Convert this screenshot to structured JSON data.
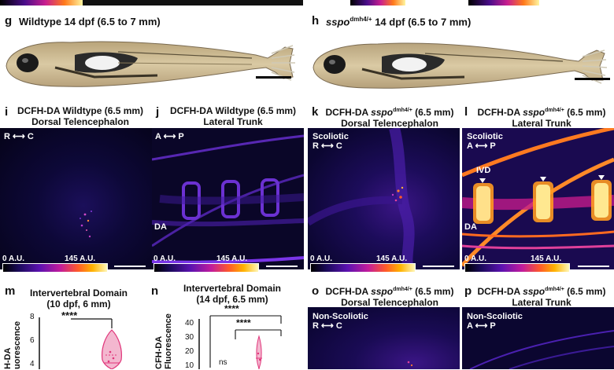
{
  "top_strip": {
    "present": true
  },
  "panels": {
    "g": {
      "letter": "g",
      "title": "Wildtype 14 dpf (6.5 to 7 mm)"
    },
    "h": {
      "letter": "h",
      "title_italic": "sspo",
      "title_sup": "dmh4/+",
      "title_rest": " 14 dpf (6.5 to 7 mm)"
    },
    "i": {
      "letter": "i",
      "line1": "DCFH-DA Wildtype (6.5 mm)",
      "line2": "Dorsal Telencephalon",
      "orientation": "R ⟷ C",
      "cbar_min": "0 A.U.",
      "cbar_max": "145 A.U."
    },
    "j": {
      "letter": "j",
      "line1": "DCFH-DA Wildtype (6.5 mm)",
      "line2": "Lateral Trunk",
      "orientation": "A ⟷ P",
      "label_da": "DA",
      "cbar_min": "0 A.U.",
      "cbar_max": "145 A.U."
    },
    "k": {
      "letter": "k",
      "line1_pre": "DCFH-DA ",
      "line1_italic": "sspo",
      "line1_sup": "dmh4/+",
      "line1_post": " (6.5 mm)",
      "line2": "Dorsal Telencephalon",
      "tag": "Scoliotic",
      "orientation": "R ⟷ C",
      "cbar_min": "0 A.U.",
      "cbar_max": "145 A.U."
    },
    "l": {
      "letter": "l",
      "line1_pre": "DCFH-DA ",
      "line1_italic": "sspo",
      "line1_sup": "dmh4/+",
      "line1_post": " (6.5 mm)",
      "line2": "Lateral Trunk",
      "tag": "Scoliotic",
      "orientation": "A ⟷ P",
      "label_ivd": "IVD",
      "label_da": "DA",
      "cbar_min": "0 A.U.",
      "cbar_max": "145 A.U."
    },
    "m": {
      "letter": "m",
      "title1": "Intervertebral Domain",
      "title2": "(10 dpf, 6 mm)",
      "ylabel1": "H-DA",
      "ylabel2": "uorescence",
      "sig": "****",
      "yticks": [
        "8",
        "6",
        "4"
      ]
    },
    "n": {
      "letter": "n",
      "title1": "Intervertebral Domain",
      "title2": "(14 dpf, 6.5 mm)",
      "ylabel1": "CFH-DA",
      "ylabel2": "Fluorescence",
      "sig1": "****",
      "sig2": "****",
      "ns": "ns",
      "yticks": [
        "40",
        "30",
        "20",
        "10"
      ]
    },
    "o": {
      "letter": "o",
      "line1_pre": "DCFH-DA ",
      "line1_italic": "sspo",
      "line1_sup": "dmh4/+",
      "line1_post": " (6.5 mm)",
      "line2": "Dorsal Telencephalon",
      "tag": "Non-Scoliotic",
      "orientation": "R ⟷ C"
    },
    "p": {
      "letter": "p",
      "line1_pre": "DCFH-DA ",
      "line1_italic": "sspo",
      "line1_sup": "dmh4/+",
      "line1_post": " (6.5 mm)",
      "line2": "Lateral Trunk",
      "tag": "Non-Scoliotic",
      "orientation": "A ⟷ P"
    }
  },
  "colors": {
    "accent": "#e0357a",
    "heat_low": "#000000",
    "heat_high": "#fff7b8"
  }
}
